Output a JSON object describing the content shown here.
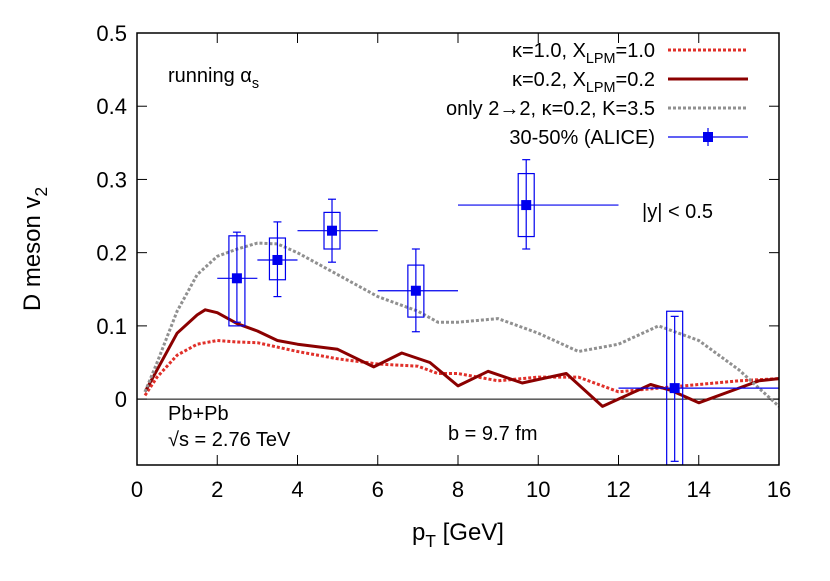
{
  "chart_data": {
    "type": "line",
    "xlabel": [
      "p",
      "T",
      " [GeV]"
    ],
    "ylabel": [
      "D meson v",
      "2"
    ],
    "xlim": [
      0,
      16
    ],
    "ylim": [
      -0.09,
      0.5
    ],
    "xticks": [
      0,
      2,
      4,
      6,
      8,
      10,
      12,
      14,
      16
    ],
    "yticks": [
      0,
      0.1,
      0.2,
      0.3,
      0.4,
      0.5
    ],
    "zero_line": true,
    "legend": "upper right",
    "annotations": [
      [
        "running α",
        "s"
      ],
      [
        "|y| < 0.5"
      ],
      [
        "Pb+Pb"
      ],
      [
        "√s = 2.76 TeV"
      ],
      [
        "b = 9.7 fm"
      ]
    ],
    "series": [
      {
        "name": [
          "κ=1.0, X",
          "LPM",
          "=1.0"
        ],
        "color": "#e0302a",
        "style": "dotted",
        "x": [
          0.2,
          0.5,
          1,
          1.5,
          2,
          2.5,
          3,
          4,
          5,
          6,
          7,
          7.5,
          8,
          9,
          10,
          11,
          12,
          13,
          14,
          15,
          16
        ],
        "values": [
          0.005,
          0.03,
          0.06,
          0.075,
          0.08,
          0.078,
          0.077,
          0.065,
          0.055,
          0.048,
          0.045,
          0.035,
          0.035,
          0.025,
          0.03,
          0.03,
          0.01,
          0.015,
          0.02,
          0.025,
          0.028
        ]
      },
      {
        "name": [
          "κ=0.2, X",
          "LPM",
          "=0.2"
        ],
        "color": "#8b0000",
        "style": "solid",
        "x": [
          0.2,
          0.5,
          1,
          1.5,
          1.7,
          2,
          2.5,
          3,
          3.5,
          4,
          5,
          5.9,
          6.6,
          7.3,
          8,
          8.75,
          9.6,
          10.7,
          11.6,
          12.8,
          13.3,
          14,
          15,
          15.5,
          16
        ],
        "values": [
          0.01,
          0.04,
          0.09,
          0.115,
          0.122,
          0.118,
          0.103,
          0.093,
          0.08,
          0.075,
          0.068,
          0.044,
          0.063,
          0.05,
          0.018,
          0.038,
          0.022,
          0.035,
          -0.01,
          0.02,
          0.012,
          -0.005,
          0.015,
          0.025,
          0.028
        ]
      },
      {
        "name": [
          "only 2→2, κ=0.2, K=3.5"
        ],
        "color": "#909090",
        "style": "dotted",
        "x": [
          0.2,
          0.5,
          1,
          1.5,
          2,
          2.5,
          3,
          3.5,
          4,
          5,
          6,
          7,
          7.5,
          8,
          9,
          10,
          11,
          12,
          13,
          14,
          15,
          16
        ],
        "values": [
          0.01,
          0.05,
          0.12,
          0.17,
          0.195,
          0.205,
          0.213,
          0.212,
          0.2,
          0.17,
          0.14,
          0.12,
          0.105,
          0.105,
          0.11,
          0.09,
          0.065,
          0.075,
          0.1,
          0.08,
          0.04,
          -0.01
        ]
      },
      {
        "name": [
          "30-50% (ALICE)"
        ],
        "color": "#0000ee",
        "style": "errorbar",
        "x": [
          2.49,
          3.5,
          4.86,
          6.95,
          9.7,
          13.4
        ],
        "values": [
          0.165,
          0.19,
          0.23,
          0.148,
          0.265,
          0.015
        ],
        "xmin": [
          2,
          3,
          4,
          6,
          8,
          12
        ],
        "xmax": [
          3,
          4,
          6,
          8,
          12,
          16
        ],
        "ymin": [
          0.105,
          0.14,
          0.187,
          0.092,
          0.205,
          -0.085
        ],
        "ymax": [
          0.228,
          0.242,
          0.273,
          0.205,
          0.327,
          0.113
        ],
        "syst_min": [
          0.1,
          0.163,
          0.205,
          0.112,
          0.222,
          -0.09
        ],
        "syst_max": [
          0.223,
          0.22,
          0.255,
          0.183,
          0.308,
          0.12
        ]
      }
    ]
  }
}
